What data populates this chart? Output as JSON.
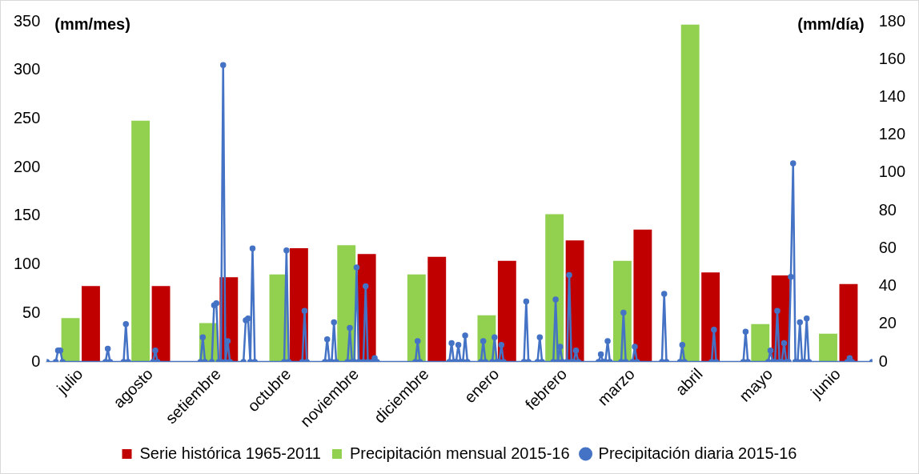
{
  "chart_data": {
    "type": "bar",
    "xlim": [
      "2015-07-01",
      "2016-06-30"
    ],
    "xticks": [
      {
        "value": "2015-07-16",
        "label": "julio"
      },
      {
        "value": "2015-08-16",
        "label": "agosto"
      },
      {
        "value": "2015-09-15",
        "label": "setiembre"
      },
      {
        "value": "2015-10-16",
        "label": "octubre"
      },
      {
        "value": "2015-11-15",
        "label": "noviembre"
      },
      {
        "value": "2015-12-16",
        "label": "diciembre"
      },
      {
        "value": "2016-01-16",
        "label": "enero"
      },
      {
        "value": "2016-02-15",
        "label": "febrero"
      },
      {
        "value": "2016-03-16",
        "label": "marzo"
      },
      {
        "value": "2016-04-15",
        "label": "abril"
      },
      {
        "value": "2016-05-16",
        "label": "mayo"
      },
      {
        "value": "2016-06-15",
        "label": "junio"
      }
    ],
    "ylabel": "(mm/mes)",
    "y2label": "(mm/día)",
    "ylim": [
      0,
      350
    ],
    "yticks": [
      0,
      50,
      100,
      150,
      200,
      250,
      300,
      350
    ],
    "y2lim": [
      0,
      180
    ],
    "y2ticks": [
      0,
      20,
      40,
      60,
      80,
      100,
      120,
      140,
      160,
      180
    ],
    "grid": false,
    "legend": "bottom",
    "series": [
      {
        "name": "Serie histórica 1965-2011",
        "color": "#c00000",
        "x": [
          "2015-07-16",
          "2015-08-16",
          "2015-09-15",
          "2015-10-16",
          "2015-11-15",
          "2015-12-16",
          "2016-01-16",
          "2016-02-15",
          "2016-03-16",
          "2016-04-15",
          "2016-05-16",
          "2016-06-15"
        ],
        "values": [
          78,
          78,
          87,
          117,
          111,
          108,
          104,
          125,
          136,
          92,
          89,
          80
        ]
      },
      {
        "name": "Precipitación mensual 2015-16",
        "color": "#92d050",
        "x": [
          "2015-07-16",
          "2015-08-16",
          "2015-09-15",
          "2015-10-16",
          "2015-11-15",
          "2015-12-16",
          "2016-01-16",
          "2016-02-15",
          "2016-03-16",
          "2016-04-15",
          "2016-05-16",
          "2016-06-15"
        ],
        "values": [
          45,
          248,
          40,
          90,
          120,
          90,
          48,
          152,
          104,
          347,
          39,
          29
        ]
      },
      {
        "name": "Precipitación diaria 2015-16",
        "color": "#4472c4",
        "type": "line",
        "axis": "y2",
        "marker": "circle",
        "line_style": "solid",
        "x": [
          "2015-07-01",
          "2015-07-05",
          "2015-07-06",
          "2015-07-07",
          "2015-07-08",
          "2015-07-27",
          "2015-07-28",
          "2015-07-29",
          "2015-08-04",
          "2015-08-05",
          "2015-08-06",
          "2015-08-17",
          "2015-08-18",
          "2015-08-19",
          "2015-09-07",
          "2015-09-08",
          "2015-09-09",
          "2015-09-12",
          "2015-09-13",
          "2015-09-14",
          "2015-09-15",
          "2015-09-16",
          "2015-09-17",
          "2015-09-18",
          "2015-09-19",
          "2015-09-20",
          "2015-09-26",
          "2015-09-27",
          "2015-09-28",
          "2015-09-29",
          "2015-09-30",
          "2015-10-01",
          "2015-10-14",
          "2015-10-15",
          "2015-10-16",
          "2015-10-22",
          "2015-10-23",
          "2015-10-24",
          "2015-11-01",
          "2015-11-02",
          "2015-11-03",
          "2015-11-04",
          "2015-11-05",
          "2015-11-06",
          "2015-11-11",
          "2015-11-12",
          "2015-11-13",
          "2015-11-14",
          "2015-11-15",
          "2015-11-16",
          "2015-11-18",
          "2015-11-19",
          "2015-11-20",
          "2015-11-22",
          "2015-11-23",
          "2015-11-24",
          "2015-12-11",
          "2015-12-12",
          "2015-12-13",
          "2015-12-26",
          "2015-12-27",
          "2015-12-28",
          "2015-12-29",
          "2015-12-30",
          "2015-12-31",
          "2016-01-01",
          "2016-01-02",
          "2016-01-03",
          "2016-01-09",
          "2016-01-10",
          "2016-01-11",
          "2016-01-14",
          "2016-01-15",
          "2016-01-16",
          "2016-01-17",
          "2016-01-18",
          "2016-01-19",
          "2016-01-28",
          "2016-01-29",
          "2016-01-30",
          "2016-02-03",
          "2016-02-04",
          "2016-02-05",
          "2016-02-10",
          "2016-02-11",
          "2016-02-12",
          "2016-02-13",
          "2016-02-14",
          "2016-02-16",
          "2016-02-17",
          "2016-02-18",
          "2016-02-19",
          "2016-02-20",
          "2016-02-21",
          "2016-03-01",
          "2016-03-02",
          "2016-03-03",
          "2016-03-04",
          "2016-03-05",
          "2016-03-06",
          "2016-03-11",
          "2016-03-12",
          "2016-03-13",
          "2016-03-16",
          "2016-03-17",
          "2016-03-18",
          "2016-03-29",
          "2016-03-30",
          "2016-03-31",
          "2016-04-06",
          "2016-04-07",
          "2016-04-08",
          "2016-04-20",
          "2016-04-21",
          "2016-04-22",
          "2016-05-04",
          "2016-05-05",
          "2016-05-06",
          "2016-05-15",
          "2016-05-16",
          "2016-05-17",
          "2016-05-18",
          "2016-05-19",
          "2016-05-20",
          "2016-05-21",
          "2016-05-22",
          "2016-05-23",
          "2016-05-24",
          "2016-05-25",
          "2016-05-26",
          "2016-05-27",
          "2016-05-28",
          "2016-05-29",
          "2016-05-30",
          "2016-05-31",
          "2016-06-01",
          "2016-06-02",
          "2016-06-19",
          "2016-06-20",
          "2016-06-21",
          "2016-06-30"
        ],
        "values": [
          0,
          0,
          6,
          6,
          0,
          0,
          7,
          0,
          0,
          20,
          0,
          0,
          6,
          0,
          0,
          13,
          0,
          0,
          30,
          31,
          0,
          0,
          157,
          0,
          11,
          0,
          0,
          22,
          23,
          0,
          60,
          0,
          0,
          59,
          0,
          0,
          27,
          0,
          0,
          12,
          0,
          0,
          21,
          0,
          0,
          18,
          0,
          0,
          50,
          0,
          0,
          40,
          0,
          0,
          2,
          0,
          0,
          11,
          0,
          0,
          10,
          0,
          0,
          9,
          0,
          0,
          14,
          0,
          0,
          11,
          0,
          0,
          13,
          0,
          0,
          9,
          0,
          0,
          32,
          0,
          0,
          13,
          0,
          0,
          33,
          0,
          8,
          0,
          0,
          46,
          0,
          0,
          6,
          0,
          0,
          4,
          0,
          0,
          11,
          0,
          0,
          26,
          0,
          0,
          8,
          0,
          0,
          36,
          0,
          0,
          9,
          0,
          0,
          17,
          0,
          0,
          16,
          0,
          0,
          6,
          0,
          0,
          27,
          0,
          0,
          10,
          0,
          0,
          45,
          105,
          0,
          0,
          21,
          0,
          0,
          23,
          0,
          0,
          2,
          0,
          0
        ]
      }
    ]
  }
}
